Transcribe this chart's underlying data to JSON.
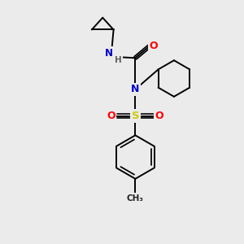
{
  "bg_color": "#ebebeb",
  "atom_colors": {
    "N": "#0000cc",
    "O": "#ff0000",
    "S": "#cccc00",
    "C": "#000000",
    "H": "#606060"
  },
  "bond_color": "#000000",
  "bond_width": 1.4,
  "fig_w": 3.0,
  "fig_h": 3.0,
  "dpi": 100
}
